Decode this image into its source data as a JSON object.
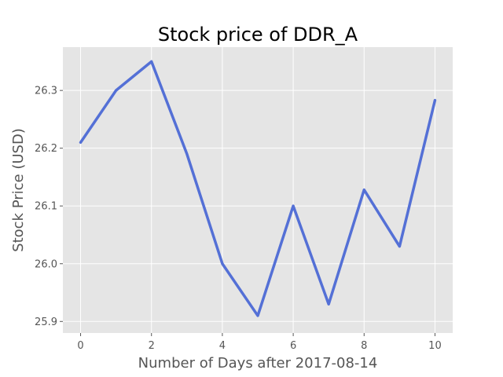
{
  "chart_data": {
    "type": "line",
    "title": "Stock price of DDR_A",
    "xlabel": "Number of Days after 2017-08-14",
    "ylabel": "Stock Price (USD)",
    "x": [
      0,
      1,
      2,
      3,
      4,
      5,
      6,
      7,
      8,
      9,
      10
    ],
    "series": [
      {
        "values": [
          26.21,
          26.3,
          26.35,
          26.19,
          26.0,
          25.91,
          26.1,
          25.93,
          26.128,
          26.03,
          26.283
        ]
      }
    ],
    "xlim": [
      -0.5,
      10.5
    ],
    "ylim": [
      25.88,
      26.375
    ],
    "xticks": [
      0,
      2,
      4,
      6,
      8,
      10
    ],
    "xtick_labels": [
      "0",
      "2",
      "4",
      "6",
      "8",
      "10"
    ],
    "yticks": [
      25.9,
      26.0,
      26.1,
      26.2,
      26.3
    ],
    "ytick_labels": [
      "25.9",
      "26.0",
      "26.1",
      "26.2",
      "26.3"
    ],
    "grid": true,
    "colors": {
      "line": "#5470d6",
      "plot_background": "#e5e5e5",
      "grid": "#ffffff"
    }
  }
}
